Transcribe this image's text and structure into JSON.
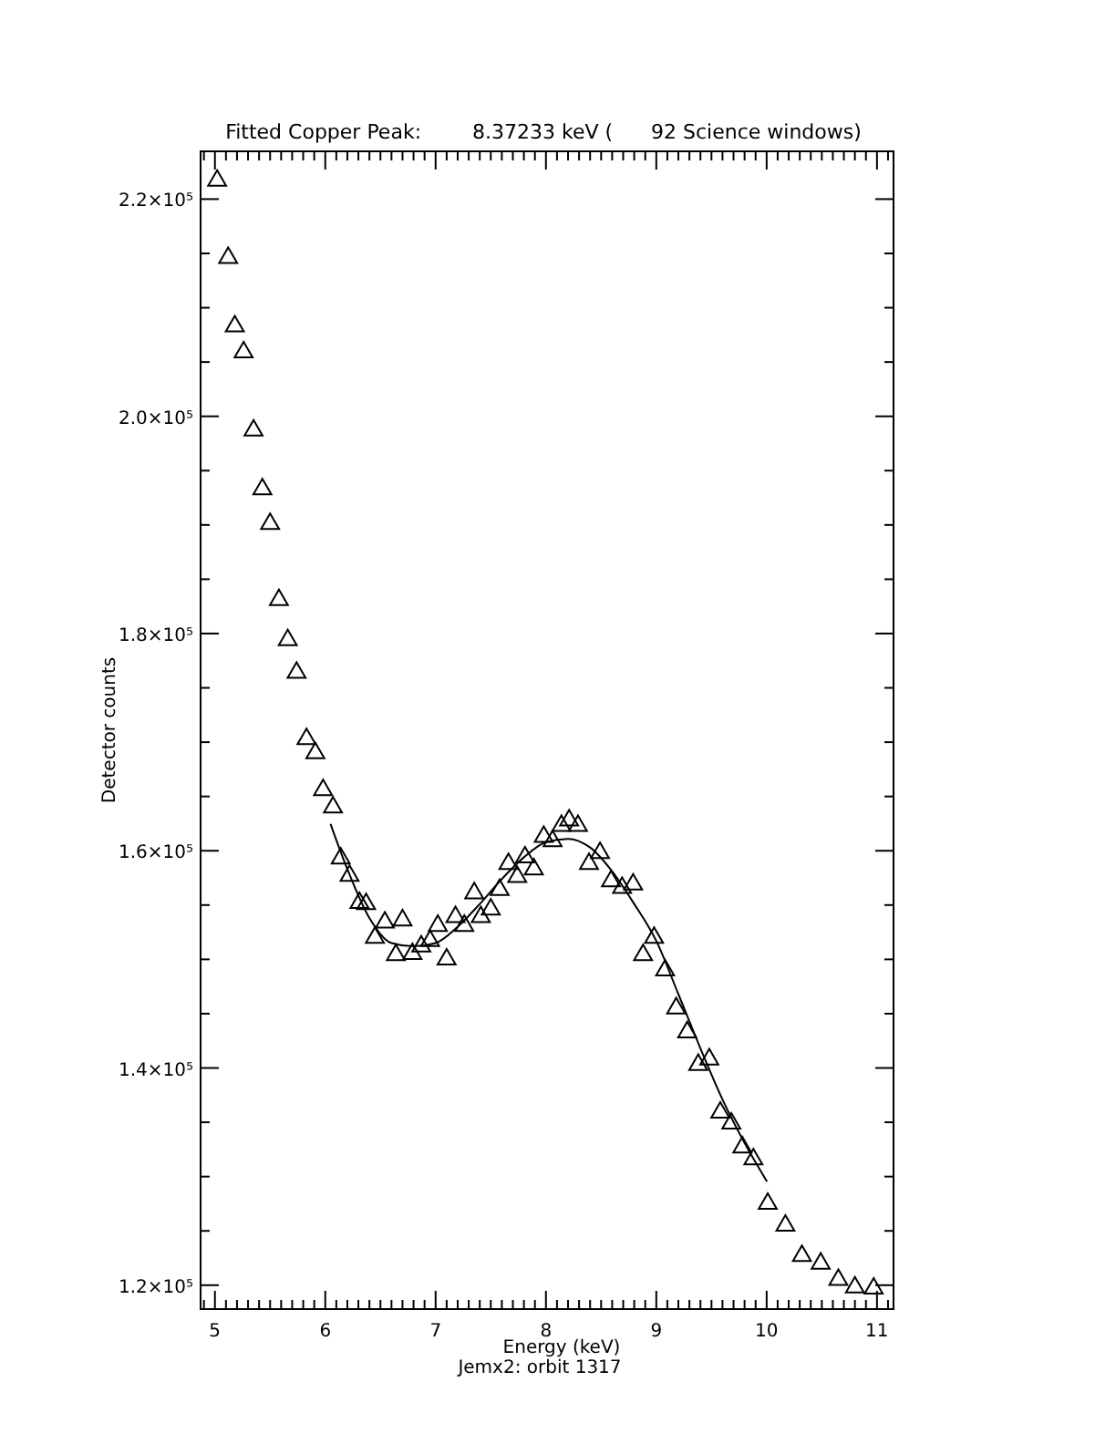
{
  "chart_data": {
    "type": "scatter",
    "title": "Fitted Copper Peak:        8.37233 keV (      92 Science windows)",
    "xlabel": "Energy (keV)",
    "ylabel": "Detector counts",
    "annotations": [
      "Jemx2: orbit 1317"
    ],
    "xlim": [
      4.87,
      11.15
    ],
    "ylim": [
      117800,
      224400
    ],
    "xticks": [
      {
        "value": 4.9,
        "label": null
      },
      5,
      {
        "value": 5.1,
        "label": null
      },
      {
        "value": 5.2,
        "label": null
      },
      {
        "value": 5.3,
        "label": null
      },
      {
        "value": 5.4,
        "label": null
      },
      {
        "value": 5.5,
        "label": null
      },
      {
        "value": 5.6,
        "label": null
      },
      {
        "value": 5.7,
        "label": null
      },
      {
        "value": 5.8,
        "label": null
      },
      {
        "value": 5.9,
        "label": null
      },
      6,
      {
        "value": 6.1,
        "label": null
      },
      {
        "value": 6.2,
        "label": null
      },
      {
        "value": 6.3,
        "label": null
      },
      {
        "value": 6.4,
        "label": null
      },
      {
        "value": 6.5,
        "label": null
      },
      {
        "value": 6.6,
        "label": null
      },
      {
        "value": 6.7,
        "label": null
      },
      {
        "value": 6.8,
        "label": null
      },
      {
        "value": 6.9,
        "label": null
      },
      7,
      {
        "value": 7.1,
        "label": null
      },
      {
        "value": 7.2,
        "label": null
      },
      {
        "value": 7.3,
        "label": null
      },
      {
        "value": 7.4,
        "label": null
      },
      {
        "value": 7.5,
        "label": null
      },
      {
        "value": 7.6,
        "label": null
      },
      {
        "value": 7.7,
        "label": null
      },
      {
        "value": 7.8,
        "label": null
      },
      {
        "value": 7.9,
        "label": null
      },
      8,
      {
        "value": 8.1,
        "label": null
      },
      {
        "value": 8.2,
        "label": null
      },
      {
        "value": 8.3,
        "label": null
      },
      {
        "value": 8.4,
        "label": null
      },
      {
        "value": 8.5,
        "label": null
      },
      {
        "value": 8.6,
        "label": null
      },
      {
        "value": 8.7,
        "label": null
      },
      {
        "value": 8.8,
        "label": null
      },
      {
        "value": 8.9,
        "label": null
      },
      9,
      {
        "value": 9.1,
        "label": null
      },
      {
        "value": 9.2,
        "label": null
      },
      {
        "value": 9.3,
        "label": null
      },
      {
        "value": 9.4,
        "label": null
      },
      {
        "value": 9.5,
        "label": null
      },
      {
        "value": 9.6,
        "label": null
      },
      {
        "value": 9.7,
        "label": null
      },
      {
        "value": 9.8,
        "label": null
      },
      {
        "value": 9.9,
        "label": null
      },
      10,
      {
        "value": 10.1,
        "label": null
      },
      {
        "value": 10.2,
        "label": null
      },
      {
        "value": 10.3,
        "label": null
      },
      {
        "value": 10.4,
        "label": null
      },
      {
        "value": 10.5,
        "label": null
      },
      {
        "value": 10.6,
        "label": null
      },
      {
        "value": 10.7,
        "label": null
      },
      {
        "value": 10.8,
        "label": null
      },
      {
        "value": 10.9,
        "label": null
      },
      11,
      {
        "value": 11.1,
        "label": null
      }
    ],
    "yticks": [
      {
        "value": 120000,
        "label": "1.2×10⁵"
      },
      {
        "value": 125000,
        "label": null
      },
      {
        "value": 130000,
        "label": null
      },
      {
        "value": 135000,
        "label": null
      },
      {
        "value": 140000,
        "label": "1.4×10⁵"
      },
      {
        "value": 145000,
        "label": null
      },
      {
        "value": 150000,
        "label": null
      },
      {
        "value": 155000,
        "label": null
      },
      {
        "value": 160000,
        "label": "1.6×10⁵"
      },
      {
        "value": 165000,
        "label": null
      },
      {
        "value": 170000,
        "label": null
      },
      {
        "value": 175000,
        "label": null
      },
      {
        "value": 180000,
        "label": "1.8×10⁵"
      },
      {
        "value": 185000,
        "label": null
      },
      {
        "value": 190000,
        "label": null
      },
      {
        "value": 195000,
        "label": null
      },
      {
        "value": 200000,
        "label": "2.0×10⁵"
      },
      {
        "value": 205000,
        "label": null
      },
      {
        "value": 210000,
        "label": null
      },
      {
        "value": 215000,
        "label": null
      },
      {
        "value": 220000,
        "label": "2.2×10⁵"
      }
    ],
    "grid": false,
    "series": [
      {
        "marker": "triangle",
        "color": "#000000",
        "x": [
          5.02,
          5.12,
          5.18,
          5.26,
          5.35,
          5.43,
          5.5,
          5.58,
          5.66,
          5.74,
          5.83,
          5.91,
          5.98,
          6.07,
          6.14,
          6.22,
          6.31,
          6.37,
          6.45,
          6.54,
          6.64,
          6.7,
          6.79,
          6.87,
          6.95,
          7.02,
          7.1,
          7.18,
          7.26,
          7.35,
          7.41,
          7.5,
          7.58,
          7.66,
          7.74,
          7.81,
          7.89,
          7.98,
          8.06,
          8.14,
          8.21,
          8.29,
          8.39,
          8.49,
          8.59,
          8.69,
          8.79,
          8.88,
          8.98,
          9.08,
          9.18,
          9.28,
          9.38,
          9.48,
          9.58,
          9.68,
          9.78,
          9.88,
          10.01,
          10.17,
          10.32,
          10.49,
          10.65,
          10.8,
          10.97
        ],
        "values": [
          221700,
          214600,
          208300,
          205900,
          198700,
          193300,
          190100,
          183100,
          179400,
          176400,
          170300,
          169000,
          165600,
          164000,
          159300,
          157700,
          155200,
          155100,
          152000,
          153400,
          150400,
          153600,
          150500,
          151200,
          151700,
          153100,
          150000,
          153900,
          153100,
          156100,
          153900,
          154600,
          156400,
          158800,
          157600,
          159400,
          158300,
          161300,
          160900,
          162300,
          162800,
          162300,
          158800,
          159800,
          157200,
          156600,
          156900,
          150400,
          152000,
          149000,
          145500,
          143300,
          140300,
          140800,
          135900,
          134900,
          132700,
          131600,
          127500,
          125500,
          122700,
          122000,
          120500,
          119800,
          119700
        ]
      },
      {
        "type": "line",
        "marker": "none",
        "line_style": "solid",
        "color": "#000000",
        "x": [
          6.05,
          6.2,
          6.4,
          6.6,
          6.8,
          7.0,
          7.2,
          7.4,
          7.6,
          7.8,
          8.0,
          8.2,
          8.4,
          8.6,
          8.8,
          9.0,
          9.2,
          9.4,
          9.6,
          9.8,
          10.0
        ],
        "values": [
          162400,
          158300,
          153800,
          151500,
          151200,
          151500,
          153000,
          155100,
          157400,
          159400,
          160800,
          161100,
          160300,
          158100,
          155100,
          151700,
          146800,
          141800,
          137100,
          133100,
          129600
        ]
      }
    ]
  }
}
